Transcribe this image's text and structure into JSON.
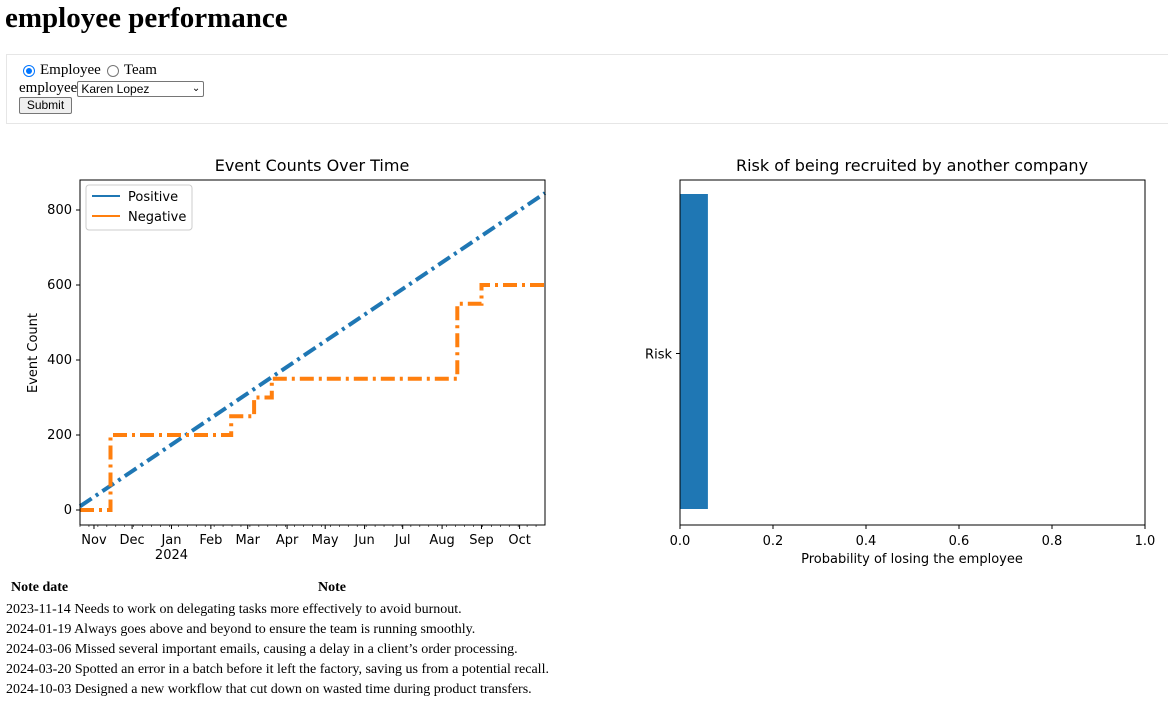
{
  "page": {
    "title": "employee performance"
  },
  "form": {
    "radio_employee": "Employee",
    "radio_team": "Team",
    "selected_mode": "Employee",
    "select_label": "employee",
    "select_value": "Karen Lopez",
    "submit_label": "Submit"
  },
  "chart_data": [
    {
      "type": "line",
      "title": "Event Counts Over Time",
      "xlabel": "",
      "ylabel": "Event Count",
      "x_ticks": [
        "Nov",
        "Dec",
        "Jan",
        "Feb",
        "Mar",
        "Apr",
        "May",
        "Jun",
        "Jul",
        "Aug",
        "Sep",
        "Oct"
      ],
      "x_sub_label": "2024",
      "y_ticks": [
        "0",
        "200",
        "400",
        "600",
        "800"
      ],
      "ylim": [
        -40,
        880
      ],
      "xlim": [
        "2023-10-21",
        "2024-10-21"
      ],
      "legend": "top-left",
      "series": [
        {
          "name": "Positive",
          "color": "#1f77b4",
          "points": [
            [
              "2023-10-21",
              10
            ],
            [
              "2024-10-21",
              845
            ]
          ]
        },
        {
          "name": "Negative",
          "color": "#ff7f0e",
          "points": [
            [
              "2023-10-21",
              0
            ],
            [
              "2023-11-14",
              0
            ],
            [
              "2023-11-14",
              200
            ],
            [
              "2024-02-17",
              200
            ],
            [
              "2024-02-17",
              250
            ],
            [
              "2024-03-06",
              250
            ],
            [
              "2024-03-06",
              300
            ],
            [
              "2024-03-20",
              300
            ],
            [
              "2024-03-20",
              350
            ],
            [
              "2024-08-13",
              350
            ],
            [
              "2024-08-13",
              550
            ],
            [
              "2024-09-01",
              550
            ],
            [
              "2024-09-01",
              600
            ],
            [
              "2024-10-21",
              600
            ]
          ]
        }
      ]
    },
    {
      "type": "bar",
      "orientation": "horizontal",
      "title": "Risk of being recruited by another company",
      "xlabel": "Probability of losing the employee",
      "ylabel": "",
      "categories": [
        "Risk"
      ],
      "values": [
        0.06
      ],
      "xlim": [
        0,
        1
      ],
      "x_ticks": [
        "0.0",
        "0.2",
        "0.4",
        "0.6",
        "0.8",
        "1.0"
      ],
      "color": "#1f77b4"
    }
  ],
  "notes": {
    "headers": [
      "Note date",
      "Note"
    ],
    "rows": [
      {
        "date": "2023-11-14",
        "note": "Needs to work on delegating tasks more effectively to avoid burnout."
      },
      {
        "date": "2024-01-19",
        "note": "Always goes above and beyond to ensure the team is running smoothly."
      },
      {
        "date": "2024-03-06",
        "note": "Missed several important emails, causing a delay in a client’s order processing."
      },
      {
        "date": "2024-03-20",
        "note": "Spotted an error in a batch before it left the factory, saving us from a potential recall."
      },
      {
        "date": "2024-10-03",
        "note": "Designed a new workflow that cut down on wasted time during product transfers."
      }
    ]
  }
}
